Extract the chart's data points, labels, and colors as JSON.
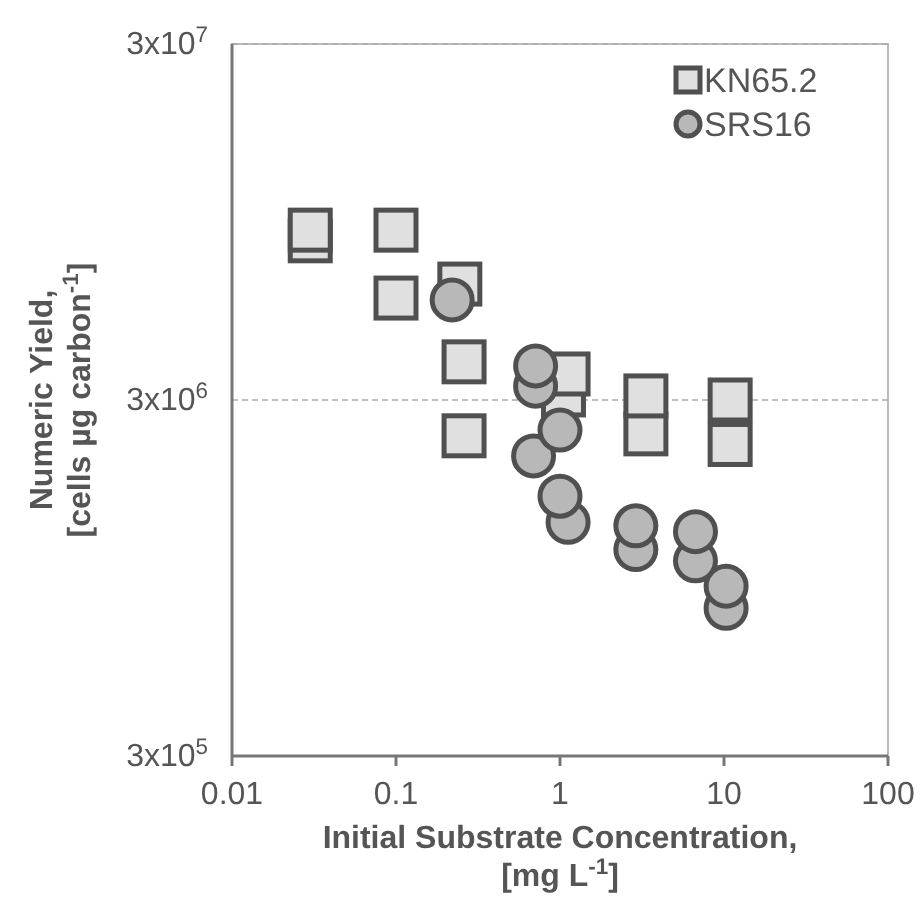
{
  "chart_data": {
    "type": "scatter",
    "xlabel": "Initial Substrate Concentration,\n[mg L$^{-1}$]",
    "ylabel": "Numeric Yield,\n[cells µg carbon$^{-1}$]",
    "log": "xy",
    "xlim": [
      0.01,
      100
    ],
    "xticks": [
      0.01,
      0.1,
      1,
      10,
      100
    ],
    "ylim": [
      300000,
      30000000
    ],
    "yticks": [
      {
        "value": 300000,
        "label": "3x10$^{5}$"
      },
      {
        "value": 3000000,
        "label": "3x10$^{6}$"
      },
      {
        "value": 30000000,
        "label": "3x10$^{7}$"
      }
    ],
    "grid": "y",
    "legend": "top right",
    "series": [
      {
        "name": "KN65.2",
        "color": "#e0e0e0",
        "marker": "square",
        "x": [
          0.03,
          0.03,
          0.1,
          0.1,
          0.245,
          0.26,
          0.26,
          1.12,
          1.05,
          3.34,
          3.34,
          10.9,
          10.9
        ],
        "values": [
          9000000,
          8400000,
          9000000,
          5800000,
          6350000,
          3840000,
          2380000,
          3550000,
          3100000,
          3080000,
          2410000,
          3000000,
          2250000
        ]
      },
      {
        "name": "SRS16",
        "color": "#b8b8b8",
        "marker": "circle",
        "x": [
          0.22,
          0.71,
          0.71,
          1.0,
          0.69,
          1.0,
          1.12,
          2.9,
          2.9,
          6.7,
          6.7,
          10.3,
          10.3
        ],
        "values": [
          5730000,
          3740000,
          3280000,
          2470000,
          2090000,
          1610000,
          1360000,
          1330000,
          1140000,
          1280000,
          1060000,
          900000,
          780000
        ]
      }
    ]
  }
}
